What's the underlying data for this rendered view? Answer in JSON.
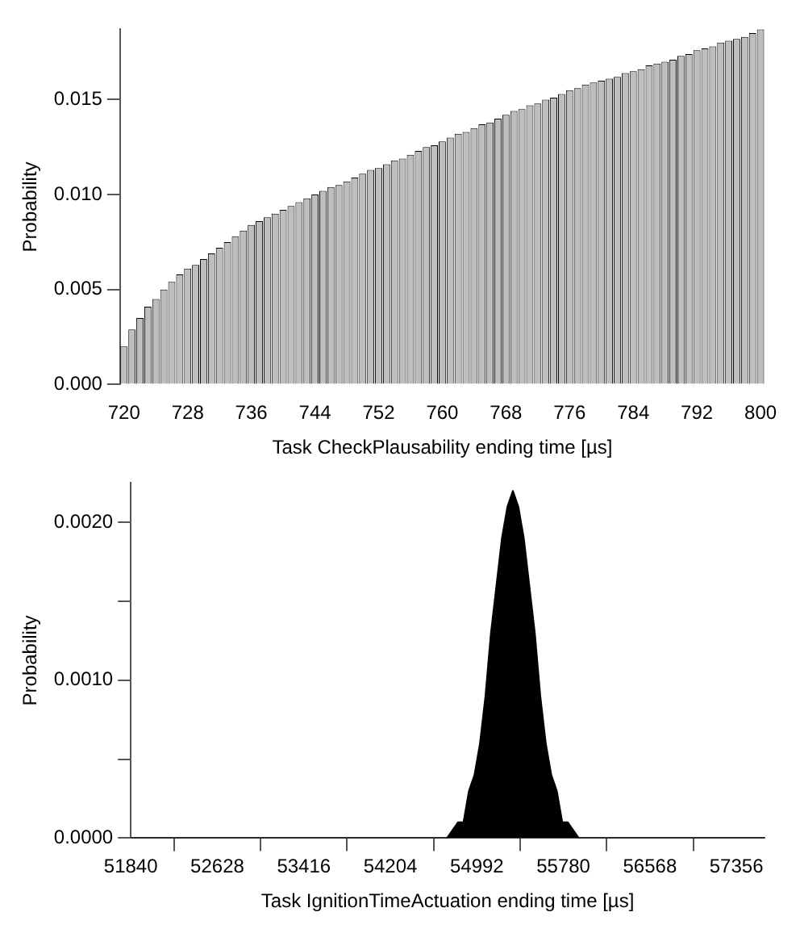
{
  "chart_data": [
    {
      "type": "bar",
      "xlabel": "Task CheckPlausability ending time [µs]",
      "ylabel": "Probability",
      "color": "#bebebe",
      "categories": [
        "720",
        null,
        null,
        null,
        null,
        null,
        null,
        null,
        "728",
        null,
        null,
        null,
        null,
        null,
        null,
        null,
        "736",
        null,
        null,
        null,
        null,
        null,
        null,
        null,
        "744",
        null,
        null,
        null,
        null,
        null,
        null,
        null,
        "752",
        null,
        null,
        null,
        null,
        null,
        null,
        null,
        "760",
        null,
        null,
        null,
        null,
        null,
        null,
        null,
        "768",
        null,
        null,
        null,
        null,
        null,
        null,
        null,
        "776",
        null,
        null,
        null,
        null,
        null,
        null,
        null,
        "784",
        null,
        null,
        null,
        null,
        null,
        null,
        null,
        "792",
        null,
        null,
        null,
        null,
        null,
        null,
        null,
        "800"
      ],
      "values": [
        0.002,
        0.0029,
        0.0035,
        0.0041,
        0.0045,
        0.005,
        0.0054,
        0.0058,
        0.0061,
        0.0063,
        0.0066,
        0.0069,
        0.0072,
        0.0075,
        0.0078,
        0.0081,
        0.0084,
        0.0086,
        0.0088,
        0.009,
        0.0092,
        0.0094,
        0.0096,
        0.0098,
        0.01,
        0.0102,
        0.0104,
        0.0105,
        0.0107,
        0.0109,
        0.0111,
        0.0113,
        0.0114,
        0.0116,
        0.0118,
        0.0119,
        0.0121,
        0.0123,
        0.0125,
        0.0126,
        0.0128,
        0.013,
        0.0132,
        0.0133,
        0.0135,
        0.0137,
        0.0138,
        0.014,
        0.0142,
        0.0144,
        0.0145,
        0.0147,
        0.0148,
        0.015,
        0.0151,
        0.0153,
        0.0155,
        0.0156,
        0.0158,
        0.0159,
        0.016,
        0.0161,
        0.0162,
        0.0164,
        0.0165,
        0.0166,
        0.0168,
        0.0169,
        0.017,
        0.0171,
        0.0173,
        0.0174,
        0.0176,
        0.0177,
        0.0178,
        0.018,
        0.0181,
        0.0182,
        0.0183,
        0.0185,
        0.0187
      ],
      "ylim": [
        0,
        0.0187
      ],
      "yticks": [
        {
          "value": 0,
          "label": "0.000"
        },
        {
          "value": 0.005,
          "label": "0.005"
        },
        {
          "value": 0.01,
          "label": "0.010"
        },
        {
          "value": 0.015,
          "label": "0.015"
        }
      ]
    },
    {
      "type": "area",
      "xlabel": "Task IgnitionTimeActuation ending time [µs]",
      "ylabel": "Probability",
      "color": "#000000",
      "marker": "none",
      "x": [
        51840,
        54620,
        54720,
        54820,
        54870,
        54920,
        54970,
        55020,
        55070,
        55120,
        55170,
        55220,
        55270,
        55320,
        55370,
        55420,
        55470,
        55520,
        55570,
        55620,
        55670,
        55720,
        55770,
        55820,
        55920,
        56020,
        57612
      ],
      "values": [
        0,
        0,
        0,
        0.0001,
        0.0001,
        0.0003,
        0.0004,
        0.0006,
        0.0009,
        0.0013,
        0.0016,
        0.0019,
        0.0021,
        0.0022,
        0.0021,
        0.0019,
        0.0016,
        0.0013,
        0.0009,
        0.0006,
        0.0004,
        0.0003,
        0.0001,
        0.0001,
        0,
        0,
        0
      ],
      "xlim": [
        51840,
        57612
      ],
      "xticks": [
        51840,
        52628,
        53416,
        54204,
        54992,
        55780,
        56568,
        57356
      ],
      "ylim": [
        0,
        0.00225
      ],
      "yticks": [
        {
          "value": 0,
          "label": "0.0000"
        },
        {
          "value": 0.0005,
          "label": null
        },
        {
          "value": 0.001,
          "label": "0.0010"
        },
        {
          "value": 0.0015,
          "label": null
        },
        {
          "value": 0.002,
          "label": "0.0020"
        }
      ]
    }
  ]
}
